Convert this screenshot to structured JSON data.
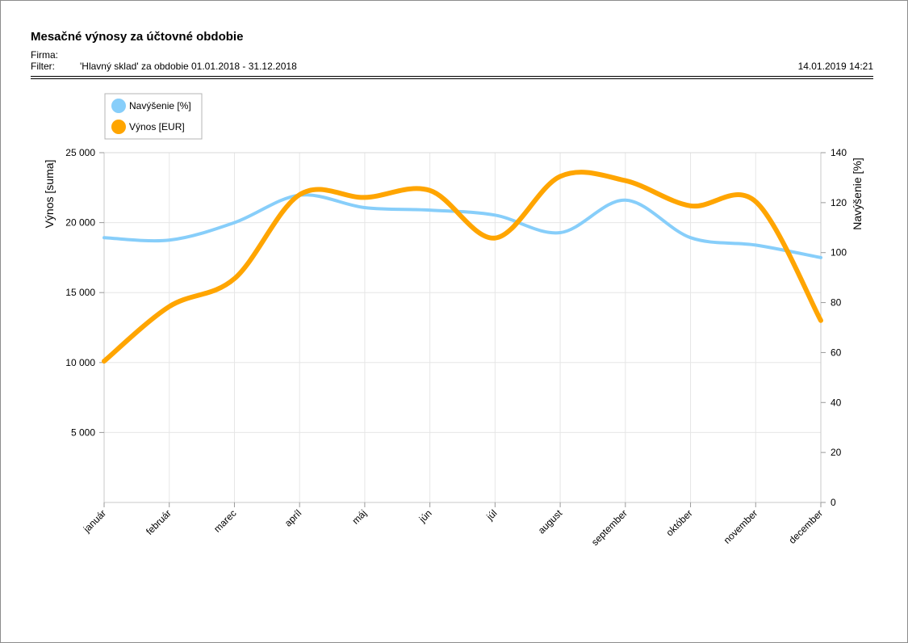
{
  "report": {
    "title": "Mesačné výnosy za účtovné obdobie",
    "firm_label": "Firma:",
    "firm_value": "",
    "filter_label": "Filter:",
    "filter_value": "'Hlavný sklad' za obdobie 01.01.2018 - 31.12.2018",
    "timestamp": "14.01.2019 14:21"
  },
  "chart_data": {
    "type": "line",
    "title": "",
    "xlabel": "",
    "ylabel": "Výnos [suma]",
    "y2label": "Navýšenie [%]",
    "categories": [
      "január",
      "február",
      "marec",
      "apríl",
      "máj",
      "jún",
      "júl",
      "august",
      "september",
      "október",
      "november",
      "december"
    ],
    "ylim": [
      0,
      25000
    ],
    "y2lim": [
      0,
      140
    ],
    "yticks": [
      5000,
      10000,
      15000,
      20000,
      25000
    ],
    "ytick_labels": [
      "5 000",
      "10 000",
      "15 000",
      "20 000",
      "25 000"
    ],
    "y2ticks": [
      0,
      20,
      40,
      60,
      80,
      100,
      120,
      140
    ],
    "grid": true,
    "legend_position": "top-left",
    "series": [
      {
        "name": "Navýšenie [%]",
        "axis": "right",
        "color": "#87cefa",
        "values": [
          106,
          105,
          112,
          123,
          118,
          117,
          115,
          108,
          121,
          106,
          103,
          98
        ]
      },
      {
        "name": "Výnos [EUR]",
        "axis": "left",
        "color": "#ffa500",
        "values": [
          10100,
          14000,
          16000,
          22000,
          21800,
          22300,
          18900,
          23300,
          23000,
          21200,
          21500,
          13000
        ]
      }
    ]
  }
}
